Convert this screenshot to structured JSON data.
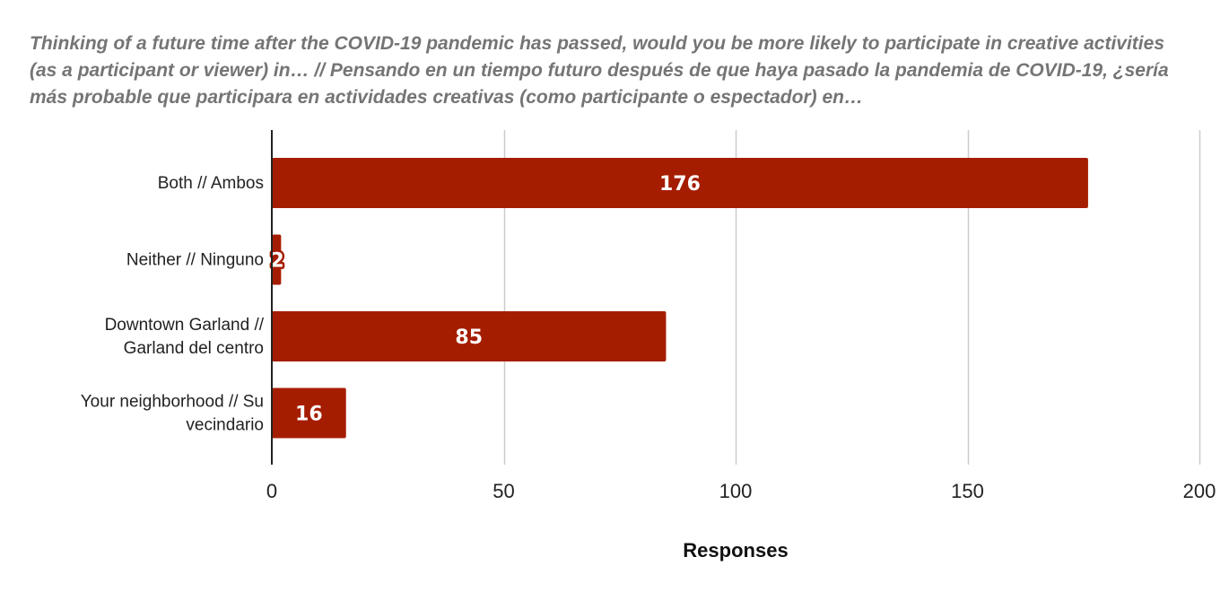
{
  "chart_data": {
    "type": "bar",
    "orientation": "horizontal",
    "title": "Thinking of a future time after the COVID-19 pandemic has passed, would you be more likely to participate in creative activities (as a participant or viewer) in… // Pensando en un tiempo futuro después de que haya pasado la pandemia de COVID-19, ¿sería más probable que participara en actividades creativas (como participante o espectador) en…",
    "categories": [
      [
        "Both // Ambos"
      ],
      [
        "Neither // Ninguno"
      ],
      [
        "Downtown Garland //",
        "Garland del centro"
      ],
      [
        "Your neighborhood // Su",
        "vecindario"
      ]
    ],
    "values": [
      176,
      2,
      85,
      16
    ],
    "xlabel": "Responses",
    "ylabel": "",
    "xlim": [
      0,
      200
    ],
    "xticks": [
      0,
      50,
      100,
      150,
      200
    ],
    "grid": true,
    "bar_color": "#a51d00",
    "data_labels": true
  }
}
